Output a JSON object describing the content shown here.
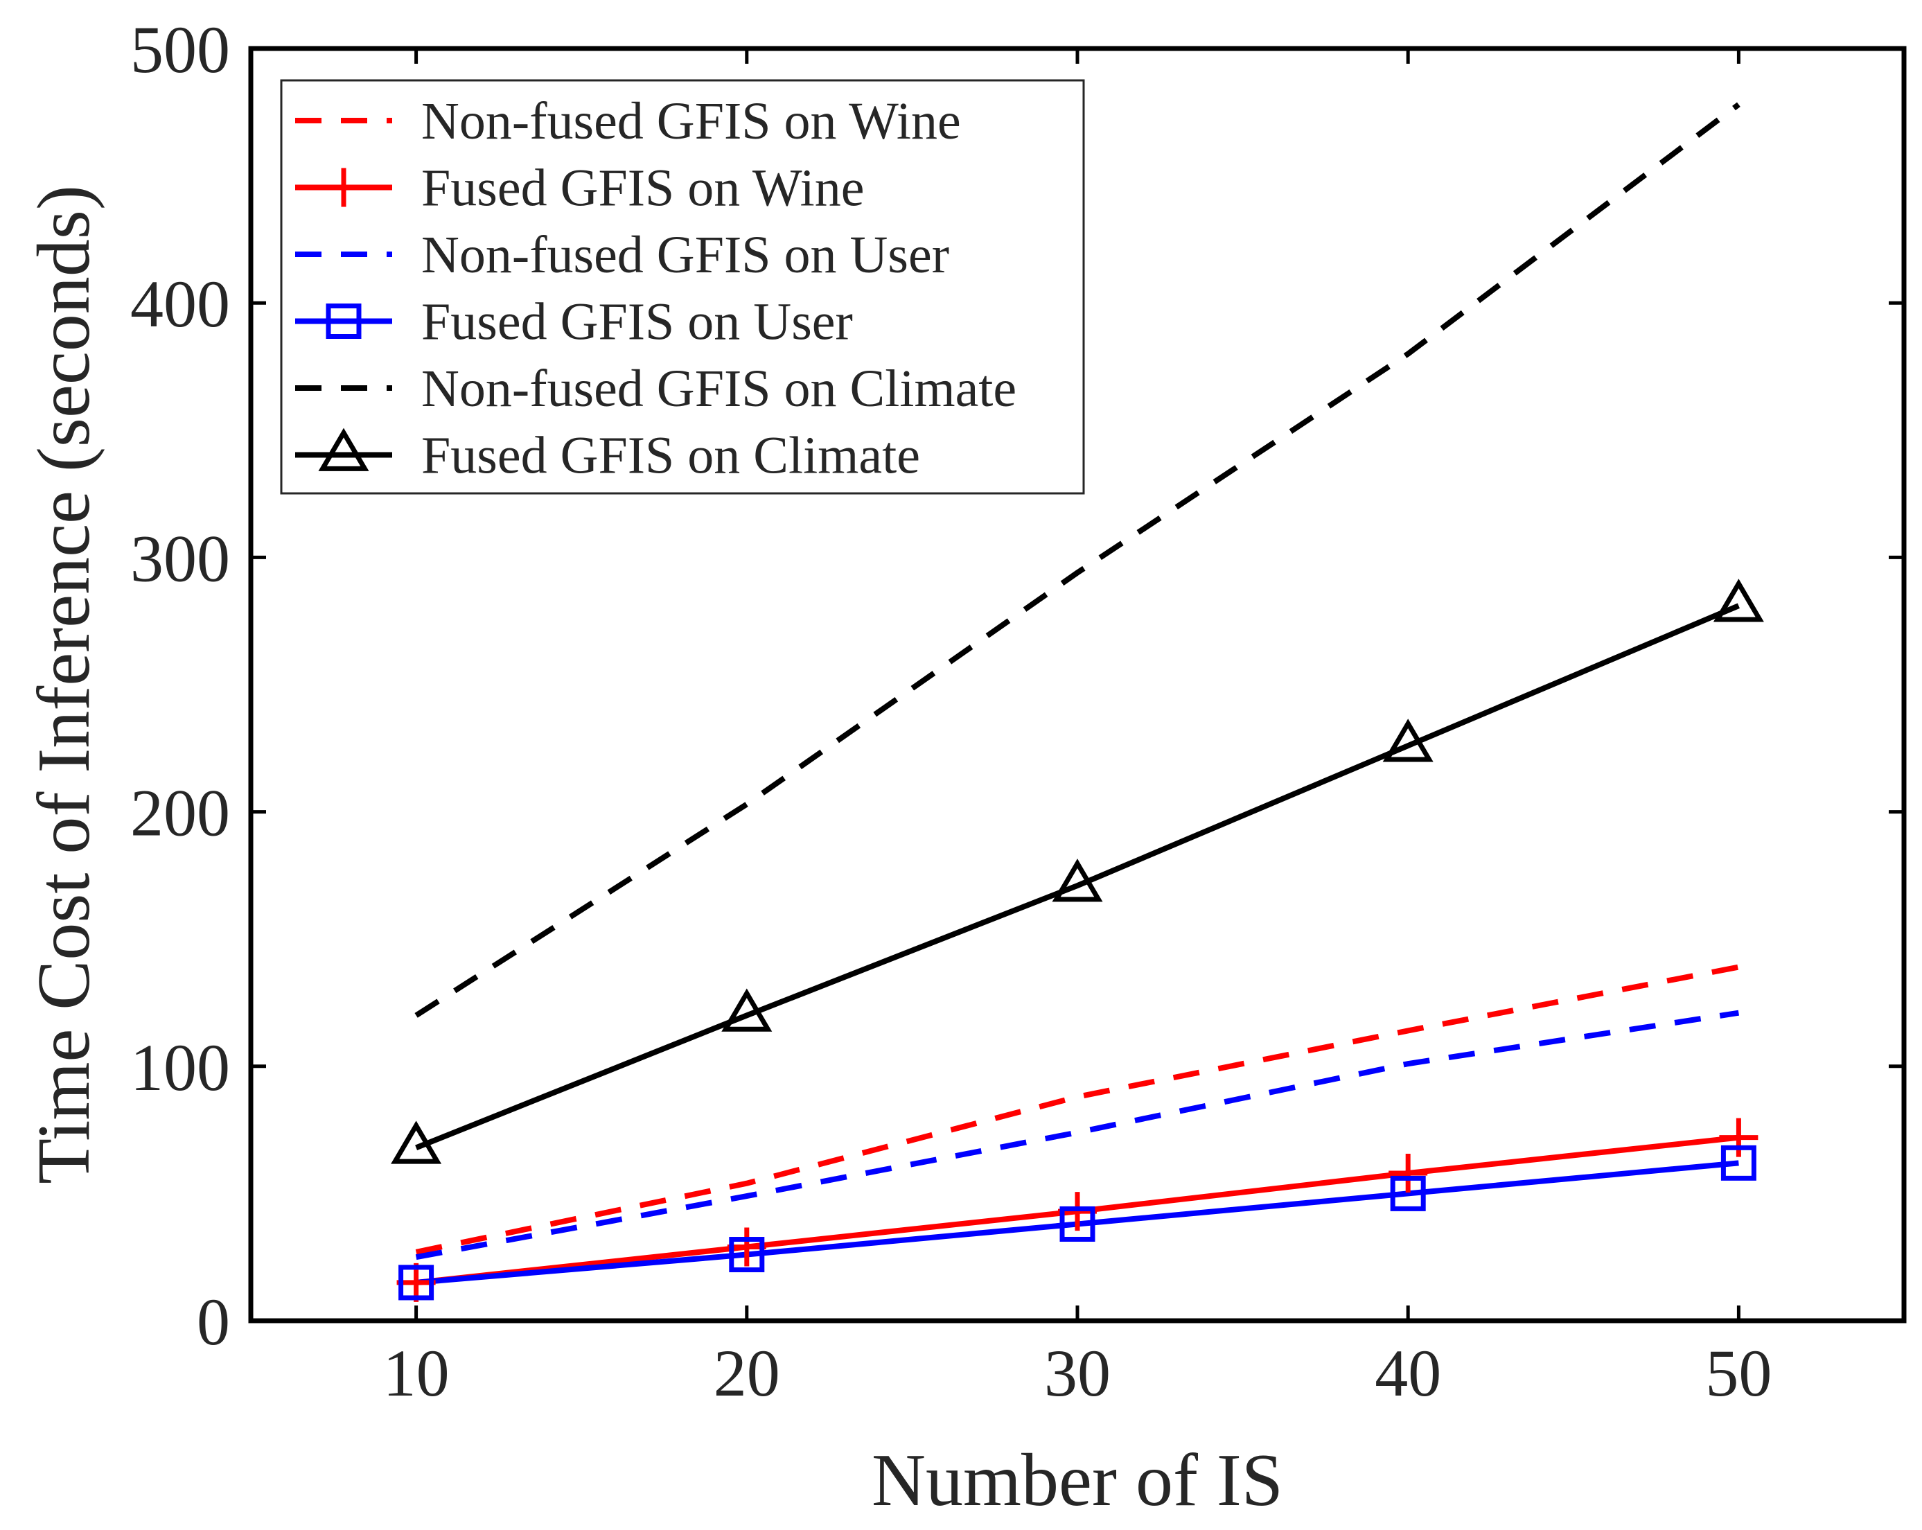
{
  "chart_data": {
    "type": "line",
    "title": "",
    "xlabel": "Number of IS",
    "ylabel": "Time Cost of Inference (seconds)",
    "xlim": [
      5,
      55
    ],
    "ylim": [
      0,
      500
    ],
    "x": [
      10,
      20,
      30,
      40,
      50
    ],
    "xticks": [
      "10",
      "20",
      "30",
      "40",
      "50"
    ],
    "yticks": [
      "0",
      "100",
      "200",
      "300",
      "400",
      "500"
    ],
    "grid": false,
    "legend_position": "top-left",
    "series": [
      {
        "name": "Non-fused GFIS on Wine",
        "color": "#ff0000",
        "style": "dashed",
        "marker": "none",
        "values": [
          27,
          54,
          88,
          114,
          139
        ]
      },
      {
        "name": "Fused GFIS on Wine",
        "color": "#ff0000",
        "style": "solid",
        "marker": "plus",
        "values": [
          15,
          29,
          43,
          58,
          72
        ]
      },
      {
        "name": "Non-fused GFIS on User",
        "color": "#0000ff",
        "style": "dashed",
        "marker": "none",
        "values": [
          25,
          49,
          74,
          101,
          121
        ]
      },
      {
        "name": "Fused GFIS on User",
        "color": "#0000ff",
        "style": "solid",
        "marker": "square",
        "values": [
          15,
          26,
          38,
          50,
          62
        ]
      },
      {
        "name": "Non-fused GFIS on Climate",
        "color": "#000000",
        "style": "dashed",
        "marker": "none",
        "values": [
          120,
          203,
          294,
          380,
          478
        ]
      },
      {
        "name": "Fused GFIS on Climate",
        "color": "#000000",
        "style": "solid",
        "marker": "triangle",
        "values": [
          68,
          120,
          171,
          226,
          281
        ]
      }
    ]
  }
}
